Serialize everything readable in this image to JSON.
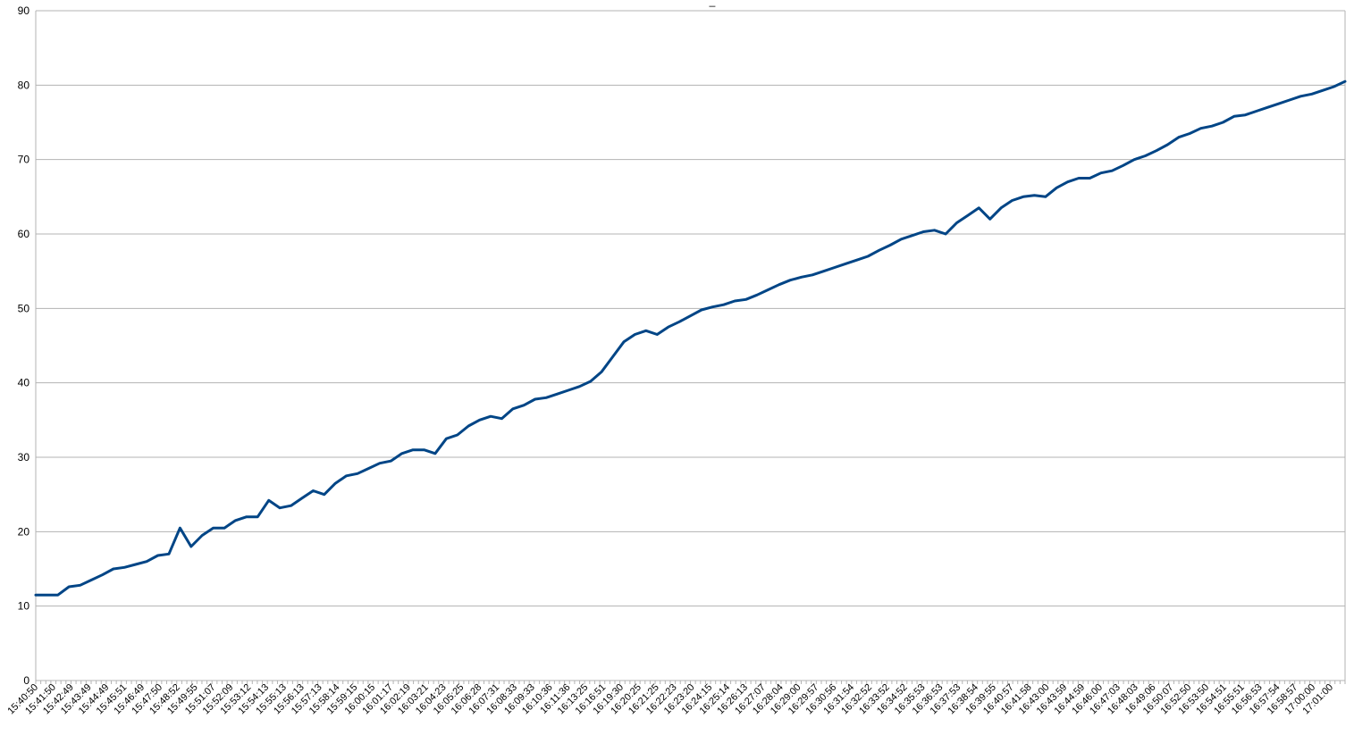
{
  "chart_data": {
    "type": "line",
    "title": "_",
    "xlabel": "",
    "ylabel": "",
    "ylim": [
      0,
      90
    ],
    "yticks": [
      0,
      10,
      20,
      30,
      40,
      50,
      60,
      70,
      80,
      90
    ],
    "grid": "horizontal",
    "legend": "none",
    "line_color": "#004586",
    "x_tick_labels": [
      "15:40:50",
      "15:41:50",
      "15:42:49",
      "15:43:49",
      "15:44:49",
      "15:45:51",
      "15:46:49",
      "15:47:50",
      "15:48:52",
      "15:49:55",
      "15:51:07",
      "15:52:09",
      "15:53:12",
      "15:54:13",
      "15:55:13",
      "15:56:13",
      "15:57:13",
      "15:58:14",
      "15:59:15",
      "16:00:15",
      "16:01:17",
      "16:02:19",
      "16:03:21",
      "16:04:23",
      "16:05:25",
      "16:06:28",
      "16:07:31",
      "16:08:33",
      "16:09:33",
      "16:10:36",
      "16:11:36",
      "16:13:25",
      "16:16:51",
      "16:19:30",
      "16:20:25",
      "16:21:25",
      "16:22:23",
      "16:23:20",
      "16:24:15",
      "16:25:14",
      "16:26:13",
      "16:27:07",
      "16:28:04",
      "16:29:00",
      "16:29:57",
      "16:30:56",
      "16:31:54",
      "16:32:52",
      "16:33:52",
      "16:34:52",
      "16:35:53",
      "16:36:53",
      "16:37:53",
      "16:38:54",
      "16:39:55",
      "16:40:57",
      "16:41:58",
      "16:43:00",
      "16:43:59",
      "16:44:59",
      "16:46:00",
      "16:47:03",
      "16:48:03",
      "16:49:06",
      "16:50:07",
      "16:52:50",
      "16:53:50",
      "16:54:51",
      "16:55:51",
      "16:56:53",
      "16:57:54",
      "16:58:57",
      "17:00:00",
      "17:01:00"
    ],
    "series": [
      {
        "values": [
          11.5,
          11.5,
          11.5,
          12.6,
          12.8,
          13.5,
          14.2,
          15.0,
          15.2,
          15.6,
          16.0,
          16.8,
          17.0,
          20.5,
          18.0,
          19.5,
          20.5,
          20.5,
          21.5,
          22.0,
          22.0,
          24.2,
          23.2,
          23.5,
          24.5,
          25.5,
          25.0,
          26.5,
          27.5,
          27.8,
          28.5,
          29.2,
          29.5,
          30.5,
          31.0,
          31.0,
          30.5,
          32.5,
          33.0,
          34.2,
          35.0,
          35.5,
          35.2,
          36.5,
          37.0,
          37.8,
          38.0,
          38.5,
          39.0,
          39.5,
          40.2,
          41.5,
          43.5,
          45.5,
          46.5,
          47.0,
          46.5,
          47.5,
          48.2,
          49.0,
          49.8,
          50.2,
          50.5,
          51.0,
          51.2,
          51.8,
          52.5,
          53.2,
          53.8,
          54.2,
          54.5,
          55.0,
          55.5,
          56.0,
          56.5,
          57.0,
          57.8,
          58.5,
          59.3,
          59.8,
          60.3,
          60.5,
          60.0,
          61.5,
          62.5,
          63.5,
          62.0,
          63.5,
          64.5,
          65.0,
          65.2,
          65.0,
          66.2,
          67.0,
          67.5,
          67.5,
          68.2,
          68.5,
          69.2,
          70.0,
          70.5,
          71.2,
          72.0,
          73.0,
          73.5,
          74.2,
          74.5,
          75.0,
          75.8,
          76.0,
          76.5,
          77.0,
          77.5,
          78.0,
          78.5,
          78.8,
          79.3,
          79.8,
          80.5
        ]
      }
    ]
  }
}
